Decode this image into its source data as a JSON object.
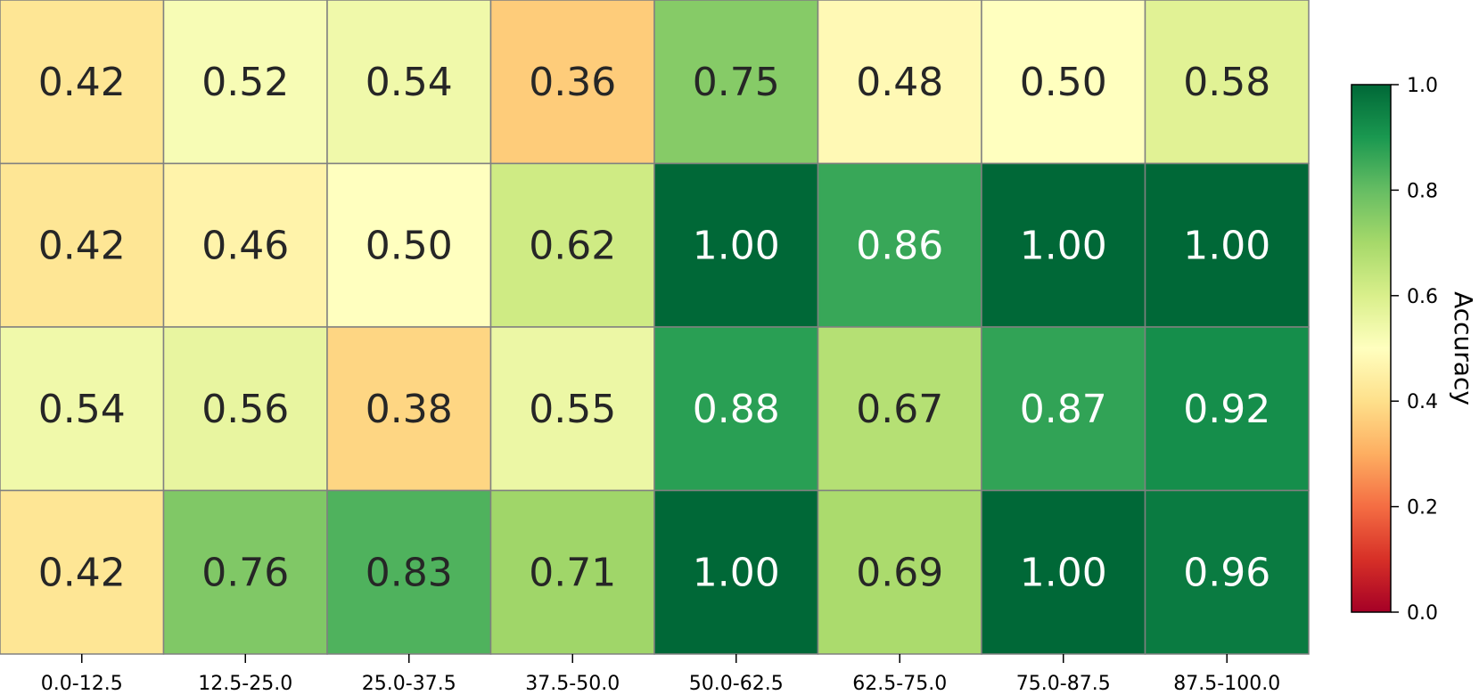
{
  "chart_data": {
    "type": "heatmap",
    "x_categories": [
      "0.0-12.5",
      "12.5-25.0",
      "25.0-37.5",
      "37.5-50.0",
      "50.0-62.5",
      "62.5-75.0",
      "75.0-87.5",
      "87.5-100.0"
    ],
    "rows": 4,
    "values": [
      [
        0.42,
        0.52,
        0.54,
        0.36,
        0.75,
        0.48,
        0.5,
        0.58
      ],
      [
        0.42,
        0.46,
        0.5,
        0.62,
        1.0,
        0.86,
        1.0,
        1.0
      ],
      [
        0.54,
        0.56,
        0.38,
        0.55,
        0.88,
        0.67,
        0.87,
        0.92
      ],
      [
        0.42,
        0.76,
        0.83,
        0.71,
        1.0,
        0.69,
        1.0,
        0.96
      ]
    ],
    "value_format": "2 decimals",
    "colormap": "RdYlGn",
    "vmin": 0.0,
    "vmax": 1.0,
    "colorbar": {
      "label": "Accuracy",
      "ticks": [
        "0.0",
        "0.2",
        "0.4",
        "0.6",
        "0.8",
        "1.0"
      ],
      "placement": "right"
    },
    "cell_border_color": "#808080",
    "dark_text_color": "#262626",
    "light_text_color": "#ffffff"
  }
}
